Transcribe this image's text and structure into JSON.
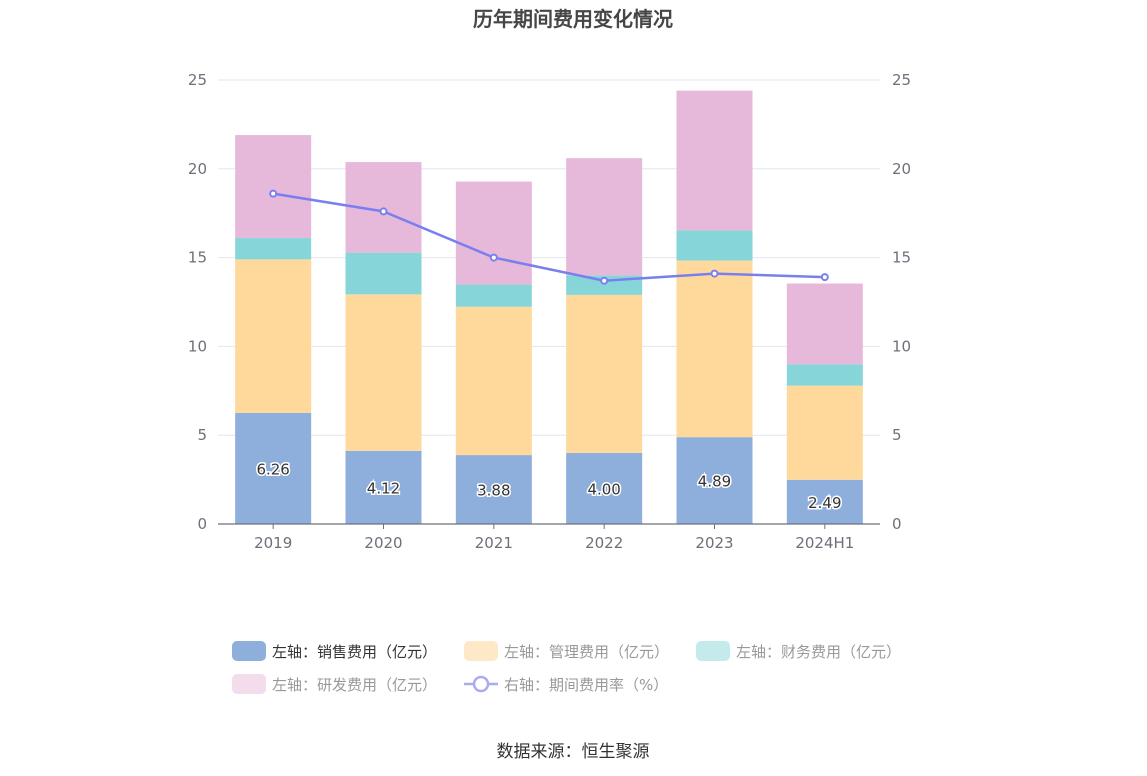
{
  "chart_data": {
    "type": "bar",
    "stacked": true,
    "title": "历年期间费用变化情况",
    "categories": [
      "2019",
      "2020",
      "2021",
      "2022",
      "2023",
      "2024H1"
    ],
    "series": [
      {
        "name": "左轴：销售费用（亿元）",
        "axis": "left",
        "color": "#8eaedc",
        "legend_color": "#8eaedc",
        "values": [
          6.26,
          4.12,
          3.88,
          4.0,
          4.89,
          2.49
        ],
        "labels": [
          "6.26",
          "4.12",
          "3.88",
          "4.00",
          "4.89",
          "2.49"
        ]
      },
      {
        "name": "左轴：管理费用（亿元）",
        "axis": "left",
        "color": "#fed99b",
        "legend_color": "#fde9c8",
        "values": [
          8.64,
          8.81,
          8.35,
          8.9,
          9.94,
          5.3
        ]
      },
      {
        "name": "左轴：财务费用（亿元）",
        "axis": "left",
        "color": "#86d6d9",
        "legend_color": "#c4eaec",
        "values": [
          1.2,
          2.35,
          1.25,
          1.1,
          1.7,
          1.2
        ]
      },
      {
        "name": "左轴：研发费用（亿元）",
        "axis": "left",
        "color": "#e6b8da",
        "legend_color": "#f3dcec",
        "values": [
          5.8,
          5.1,
          5.8,
          6.6,
          7.87,
          4.55
        ]
      },
      {
        "name": "右轴：期间费用率（%）",
        "axis": "right",
        "type": "line",
        "color": "#7a7ff0",
        "values": [
          18.6,
          17.6,
          15.0,
          13.7,
          14.1,
          13.9
        ]
      }
    ],
    "left_axis": {
      "min": 0,
      "max": 25,
      "ticks": [
        0,
        5,
        10,
        15,
        20,
        25
      ]
    },
    "right_axis": {
      "min": 0,
      "max": 25,
      "ticks": [
        0,
        5,
        10,
        15,
        20,
        25
      ]
    },
    "grid": true,
    "legend_position": "bottom"
  },
  "source": "数据来源：恒生聚源"
}
